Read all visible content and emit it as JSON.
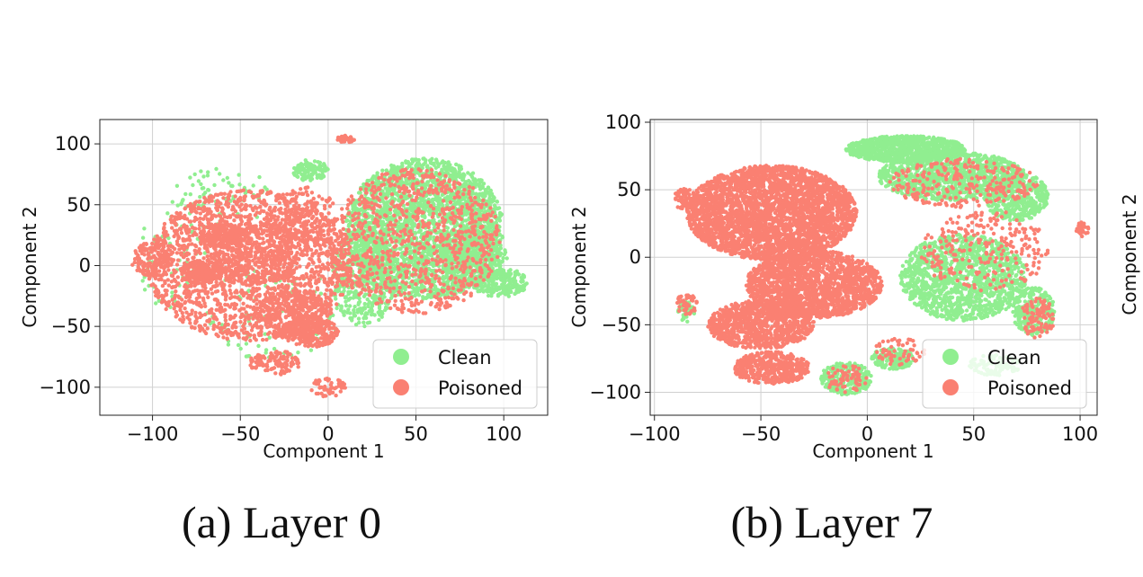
{
  "figure": {
    "captions": [
      "(a) Layer 0",
      "(b) Layer 7"
    ],
    "right_edge_label": "Component 2"
  },
  "colors": {
    "clean": "#90EE90",
    "poisoned": "#FA8072"
  },
  "chart_data": [
    {
      "type": "scatter",
      "caption": "(a) Layer 0",
      "xlabel": "Component 1",
      "ylabel": "Component 2",
      "xlim": [
        -130,
        125
      ],
      "ylim": [
        -123,
        120
      ],
      "xticks": [
        -100,
        -50,
        0,
        50,
        100
      ],
      "xtick_labels": [
        "−100",
        "−50",
        "0",
        "50",
        "100"
      ],
      "yticks": [
        -100,
        -50,
        0,
        50,
        100
      ],
      "ytick_labels": [
        "−100",
        "−50",
        "0",
        "50",
        "100"
      ],
      "grid": true,
      "legend": {
        "placement": "lower-right",
        "entries": [
          "Clean",
          "Poisoned"
        ]
      },
      "series": [
        {
          "name": "Clean",
          "color": "#90EE90",
          "clusters": [
            {
              "cx": 55,
              "cy": 30,
              "rx": 45,
              "ry": 58,
              "n": 2600
            },
            {
              "cx": 98,
              "cy": -14,
              "rx": 16,
              "ry": 12,
              "n": 260
            },
            {
              "cx": 82,
              "cy": 5,
              "rx": 20,
              "ry": 22,
              "n": 300
            },
            {
              "cx": 20,
              "cy": -10,
              "rx": 18,
              "ry": 40,
              "n": 450
            },
            {
              "cx": -10,
              "cy": 78,
              "rx": 10,
              "ry": 9,
              "n": 120
            },
            {
              "cx": -60,
              "cy": 55,
              "rx": 30,
              "ry": 25,
              "n": 80
            },
            {
              "cx": -90,
              "cy": 5,
              "rx": 20,
              "ry": 40,
              "n": 60
            },
            {
              "cx": -30,
              "cy": -40,
              "rx": 40,
              "ry": 40,
              "n": 90
            }
          ]
        },
        {
          "name": "Poisoned",
          "color": "#FA8072",
          "clusters": [
            {
              "cx": -45,
              "cy": 0,
              "rx": 58,
              "ry": 62,
              "n": 1900
            },
            {
              "cx": -72,
              "cy": -5,
              "rx": 12,
              "ry": 10,
              "n": 220
            },
            {
              "cx": -60,
              "cy": 25,
              "rx": 14,
              "ry": 10,
              "n": 160
            },
            {
              "cx": -20,
              "cy": -40,
              "rx": 22,
              "ry": 20,
              "n": 320
            },
            {
              "cx": -10,
              "cy": -55,
              "rx": 16,
              "ry": 12,
              "n": 240
            },
            {
              "cx": -100,
              "cy": 5,
              "rx": 12,
              "ry": 15,
              "n": 150
            },
            {
              "cx": -40,
              "cy": 10,
              "rx": 25,
              "ry": 25,
              "n": 350
            },
            {
              "cx": -15,
              "cy": 40,
              "rx": 20,
              "ry": 25,
              "n": 200
            },
            {
              "cx": 10,
              "cy": 104,
              "rx": 5,
              "ry": 3,
              "n": 40
            },
            {
              "cx": -30,
              "cy": -80,
              "rx": 15,
              "ry": 10,
              "n": 120
            },
            {
              "cx": 0,
              "cy": -100,
              "rx": 10,
              "ry": 8,
              "n": 50
            },
            {
              "cx": 50,
              "cy": 20,
              "rx": 48,
              "ry": 60,
              "n": 900
            }
          ]
        }
      ]
    },
    {
      "type": "scatter",
      "caption": "(b) Layer 7",
      "xlabel": "Component 1",
      "ylabel": "Component 2",
      "xlim": [
        -102,
        108
      ],
      "ylim": [
        -117,
        102
      ],
      "xticks": [
        -100,
        -50,
        0,
        50,
        100
      ],
      "xtick_labels": [
        "−100",
        "−50",
        "0",
        "50",
        "100"
      ],
      "yticks": [
        -100,
        -50,
        0,
        50,
        100
      ],
      "ytick_labels": [
        "−100",
        "−50",
        "0",
        "50",
        "100"
      ],
      "grid": true,
      "legend": {
        "placement": "lower-right",
        "entries": [
          "Clean",
          "Poisoned"
        ]
      },
      "series": [
        {
          "name": "Clean",
          "color": "#90EE90",
          "clusters": [
            {
              "cx": 18,
              "cy": 80,
              "rx": 28,
              "ry": 10,
              "n": 900
            },
            {
              "cx": 40,
              "cy": 60,
              "rx": 35,
              "ry": 18,
              "n": 1100
            },
            {
              "cx": 70,
              "cy": 45,
              "rx": 15,
              "ry": 18,
              "n": 450
            },
            {
              "cx": 45,
              "cy": -15,
              "rx": 30,
              "ry": 32,
              "n": 1300
            },
            {
              "cx": 78,
              "cy": -40,
              "rx": 10,
              "ry": 18,
              "n": 260
            },
            {
              "cx": -10,
              "cy": -90,
              "rx": 12,
              "ry": 12,
              "n": 250
            },
            {
              "cx": 12,
              "cy": -75,
              "rx": 10,
              "ry": 8,
              "n": 150
            },
            {
              "cx": 60,
              "cy": -80,
              "rx": 12,
              "ry": 8,
              "n": 100
            },
            {
              "cx": -85,
              "cy": -40,
              "rx": 4,
              "ry": 8,
              "n": 40
            }
          ]
        },
        {
          "name": "Poisoned",
          "color": "#FA8072",
          "clusters": [
            {
              "cx": -45,
              "cy": 33,
              "rx": 40,
              "ry": 35,
              "n": 3200
            },
            {
              "cx": -25,
              "cy": -20,
              "rx": 32,
              "ry": 25,
              "n": 1800
            },
            {
              "cx": -50,
              "cy": -50,
              "rx": 25,
              "ry": 18,
              "n": 900
            },
            {
              "cx": -45,
              "cy": -82,
              "rx": 18,
              "ry": 12,
              "n": 450
            },
            {
              "cx": -85,
              "cy": 43,
              "rx": 6,
              "ry": 8,
              "n": 70
            },
            {
              "cx": -85,
              "cy": -35,
              "rx": 5,
              "ry": 8,
              "n": 50
            },
            {
              "cx": 55,
              "cy": 5,
              "rx": 30,
              "ry": 30,
              "n": 250
            },
            {
              "cx": 45,
              "cy": 55,
              "rx": 35,
              "ry": 18,
              "n": 250
            },
            {
              "cx": 80,
              "cy": -45,
              "rx": 8,
              "ry": 15,
              "n": 90
            },
            {
              "cx": 101,
              "cy": 20,
              "rx": 3,
              "ry": 6,
              "n": 25
            },
            {
              "cx": 15,
              "cy": -70,
              "rx": 12,
              "ry": 10,
              "n": 60
            },
            {
              "cx": -10,
              "cy": -90,
              "rx": 10,
              "ry": 10,
              "n": 60
            }
          ]
        }
      ]
    }
  ]
}
